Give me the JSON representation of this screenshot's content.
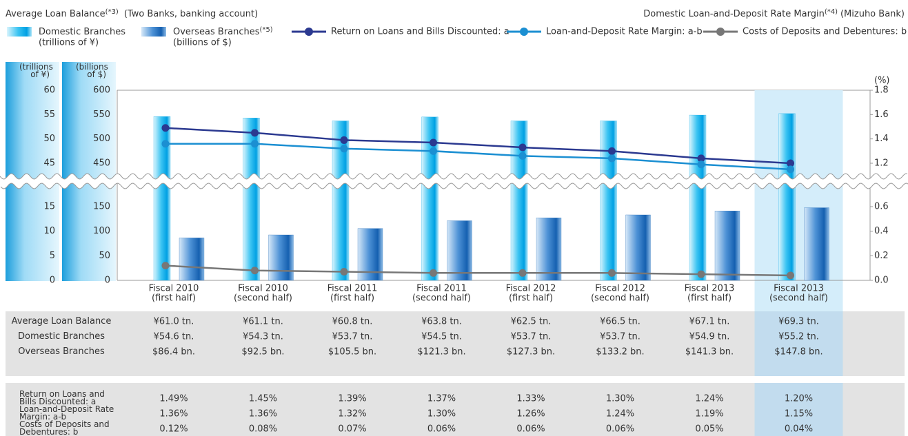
{
  "chart_data": {
    "type": "combo",
    "title": "Average Loan Balance",
    "title_note": "(*3)",
    "subtitle": "(Two Banks, banking account)",
    "right_title": "Domestic Loan-and-Deposit Rate Margin",
    "right_title_note": "(*4)",
    "right_subtitle": "(Mizuho Bank)",
    "categories": [
      [
        "Fiscal 2010",
        "(first half)"
      ],
      [
        "Fiscal 2010",
        "(second half)"
      ],
      [
        "Fiscal 2011",
        "(first half)"
      ],
      [
        "Fiscal 2011",
        "(second half)"
      ],
      [
        "Fiscal 2012",
        "(first half)"
      ],
      [
        "Fiscal 2012",
        "(second half)"
      ],
      [
        "Fiscal 2013",
        "(first half)"
      ],
      [
        "Fiscal 2013",
        "(second half)"
      ]
    ],
    "highlight_index": 7,
    "ylim": [
      0,
      60
    ],
    "y_break": [
      15,
      45
    ],
    "yticks": [
      0,
      5,
      10,
      15,
      45,
      50,
      55,
      60
    ],
    "y3lim": [
      0,
      600
    ],
    "y3_break": [
      150,
      450
    ],
    "y3ticks": [
      0,
      50,
      100,
      150,
      450,
      500,
      550,
      600
    ],
    "y2lim": [
      0,
      1.8
    ],
    "y2_break": [
      0.6,
      1.2
    ],
    "y2ticks": [
      {
        "value": 0,
        "label": "0.0"
      },
      0.2,
      0.4,
      0.6,
      1.2,
      1.4,
      1.6,
      1.8
    ],
    "y2label": "(%)",
    "summary_row": {
      "name": "Average Loan Balance",
      "value_labels": [
        "¥61.0 tn.",
        "¥61.1 tn.",
        "¥60.8 tn.",
        "¥63.8 tn.",
        "¥62.5 tn.",
        "¥66.5 tn.",
        "¥67.1 tn.",
        "¥69.3 tn."
      ]
    },
    "series": [
      {
        "name": "Domestic Branches",
        "unit": "(trillions of ¥)",
        "type": "bar",
        "axis": "y",
        "color": "#00a6e6",
        "values": [
          54.6,
          54.3,
          53.7,
          54.5,
          53.7,
          53.7,
          54.9,
          55.2
        ],
        "value_labels": [
          "¥54.6 tn.",
          "¥54.3 tn.",
          "¥53.7 tn.",
          "¥54.5 tn.",
          "¥53.7 tn.",
          "¥53.7 tn.",
          "¥54.9 tn.",
          "¥55.2 tn."
        ]
      },
      {
        "name": "Overseas Branches",
        "note": "(*5)",
        "unit": "(billions of $)",
        "type": "bar",
        "axis": "y3",
        "color": "#1763b3",
        "values": [
          86.4,
          92.5,
          105.5,
          121.3,
          127.3,
          133.2,
          141.3,
          147.8
        ],
        "value_labels": [
          "$86.4 bn.",
          "$92.5 bn.",
          "$105.5 bn.",
          "$121.3 bn.",
          "$127.3 bn.",
          "$133.2 bn.",
          "$141.3 bn.",
          "$147.8 bn."
        ]
      },
      {
        "name": "Return on Loans and Bills Discounted: a",
        "type": "line",
        "axis": "y2",
        "color": "#2b3990",
        "values": [
          1.49,
          1.45,
          1.39,
          1.37,
          1.33,
          1.3,
          1.24,
          1.2
        ],
        "value_labels": [
          "1.49%",
          "1.45%",
          "1.39%",
          "1.37%",
          "1.33%",
          "1.30%",
          "1.24%",
          "1.20%"
        ]
      },
      {
        "name": "Loan-and-Deposit Rate Margin: a-b",
        "type": "line",
        "axis": "y2",
        "color": "#1b8fd2",
        "values": [
          1.36,
          1.36,
          1.32,
          1.3,
          1.26,
          1.24,
          1.19,
          1.15
        ],
        "value_labels": [
          "1.36%",
          "1.36%",
          "1.32%",
          "1.30%",
          "1.26%",
          "1.24%",
          "1.19%",
          "1.15%"
        ]
      },
      {
        "name": "Costs of Deposits and Debentures: b",
        "type": "line",
        "axis": "y2",
        "color": "#777777",
        "values": [
          0.12,
          0.08,
          0.07,
          0.06,
          0.06,
          0.06,
          0.05,
          0.04
        ],
        "value_labels": [
          "0.12%",
          "0.08%",
          "0.07%",
          "0.06%",
          "0.06%",
          "0.06%",
          "0.05%",
          "0.04%"
        ]
      }
    ]
  }
}
